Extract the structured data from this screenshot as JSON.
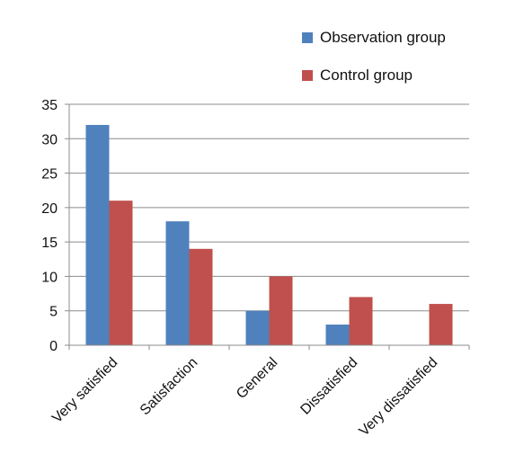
{
  "chart_data": {
    "type": "bar",
    "categories": [
      "Very satisfied",
      "Satisfaction",
      "General",
      "Dissatisfied",
      "Very dissatisfied"
    ],
    "series": [
      {
        "name": "Observation group",
        "values": [
          32,
          18,
          5,
          3,
          0
        ],
        "color": "#4f81bd"
      },
      {
        "name": "Control group",
        "values": [
          21,
          14,
          10,
          7,
          6
        ],
        "color": "#c0504d"
      }
    ],
    "title": "",
    "xlabel": "",
    "ylabel": "",
    "ylim": [
      0,
      35
    ],
    "yticks": [
      0,
      5,
      10,
      15,
      20,
      25,
      30,
      35
    ],
    "grid": true,
    "legend_position": "top-right"
  }
}
